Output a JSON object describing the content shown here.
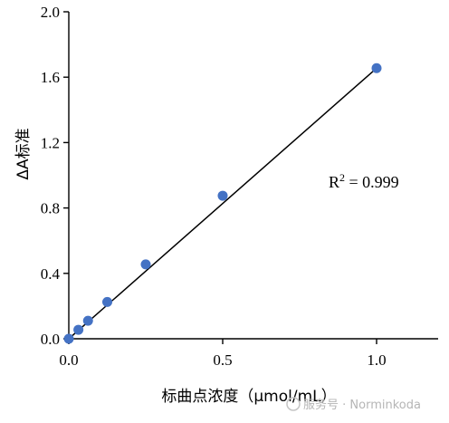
{
  "chart_data": {
    "type": "scatter",
    "xlabel": "标曲点浓度（μmol/mL）",
    "ylabel": "ΔA标准",
    "xlim": [
      0,
      1.2
    ],
    "ylim": [
      0,
      2.0
    ],
    "x_ticks": [
      "0.0",
      "0.5",
      "1.0"
    ],
    "y_ticks": [
      "0.0",
      "0.4",
      "0.8",
      "1.2",
      "1.6",
      "2.0"
    ],
    "points": [
      {
        "x": 0.0,
        "y": 0.0
      },
      {
        "x": 0.03125,
        "y": 0.055
      },
      {
        "x": 0.0625,
        "y": 0.11
      },
      {
        "x": 0.125,
        "y": 0.225
      },
      {
        "x": 0.25,
        "y": 0.455
      },
      {
        "x": 0.5,
        "y": 0.875
      },
      {
        "x": 1.0,
        "y": 1.655
      }
    ],
    "fit_line": {
      "x": [
        0.0,
        1.0
      ],
      "y": [
        0.0,
        1.655
      ]
    },
    "annotation": {
      "base": "R",
      "sup": "2",
      "rest": " = 0.999"
    },
    "point_color": "#4472c4",
    "line_color": "#000000"
  },
  "watermark": {
    "text": "服务号 · Norminkoda"
  }
}
